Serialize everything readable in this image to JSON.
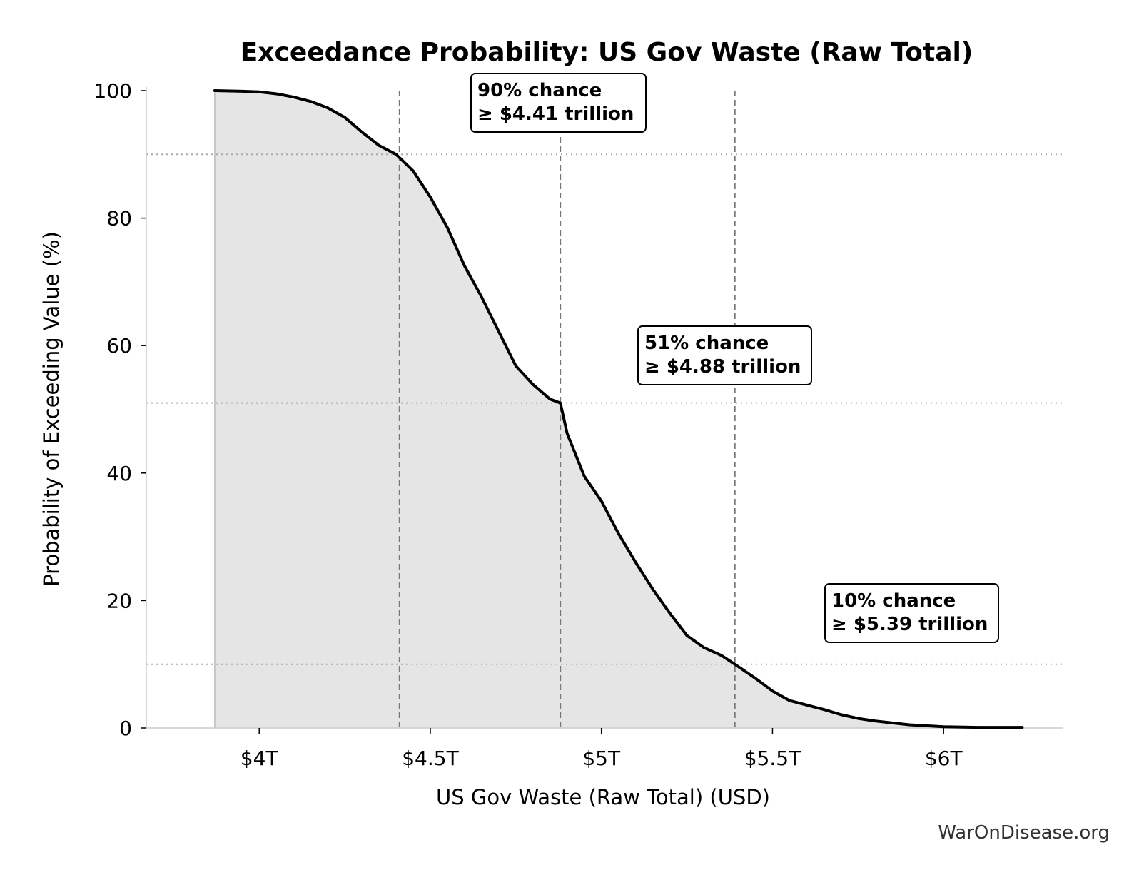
{
  "chart_data": {
    "type": "area",
    "title": "Exceedance Probability: US Gov Waste (Raw Total)",
    "xlabel": "US Gov Waste (Raw Total) (USD)",
    "ylabel": "Probability of Exceeding Value (%)",
    "x_unit": "trillion USD",
    "xlim": [
      3.67,
      6.35
    ],
    "ylim": [
      0,
      100
    ],
    "x_ticks": [
      {
        "value": 4.0,
        "label": "$4T"
      },
      {
        "value": 4.5,
        "label": "$4.5T"
      },
      {
        "value": 5.0,
        "label": "$5T"
      },
      {
        "value": 5.5,
        "label": "$5.5T"
      },
      {
        "value": 6.0,
        "label": "$6T"
      }
    ],
    "y_ticks": [
      {
        "value": 0,
        "label": "0"
      },
      {
        "value": 20,
        "label": "20"
      },
      {
        "value": 40,
        "label": "40"
      },
      {
        "value": 60,
        "label": "60"
      },
      {
        "value": 80,
        "label": "80"
      },
      {
        "value": 100,
        "label": "100"
      }
    ],
    "series": [
      {
        "x": [
          3.87,
          3.95,
          4.0,
          4.05,
          4.1,
          4.15,
          4.2,
          4.25,
          4.3,
          4.35,
          4.4,
          4.45,
          4.5,
          4.55,
          4.6,
          4.65,
          4.7,
          4.75,
          4.8,
          4.85,
          4.88,
          4.9,
          4.95,
          5.0,
          5.05,
          5.1,
          5.15,
          5.2,
          5.25,
          5.3,
          5.35,
          5.39,
          5.45,
          5.5,
          5.55,
          5.6,
          5.65,
          5.7,
          5.75,
          5.8,
          5.85,
          5.9,
          6.0,
          6.1,
          6.23
        ],
        "y": [
          100,
          99.9,
          99.8,
          99.5,
          99.0,
          98.3,
          97.3,
          95.8,
          93.5,
          91.4,
          90.0,
          87.4,
          83.3,
          78.5,
          72.5,
          67.6,
          62.2,
          56.8,
          53.9,
          51.6,
          51.0,
          46.2,
          39.5,
          35.6,
          30.5,
          26.0,
          21.8,
          18.0,
          14.5,
          12.6,
          11.4,
          10.0,
          7.8,
          5.8,
          4.3,
          3.6,
          2.9,
          2.1,
          1.5,
          1.1,
          0.8,
          0.5,
          0.2,
          0.1,
          0.1
        ]
      }
    ],
    "reference_lines": {
      "vertical_x": [
        4.41,
        4.88,
        5.39
      ],
      "horizontal_y": [
        90,
        51,
        10
      ]
    },
    "annotations": [
      {
        "line1": "90% chance",
        "line2": "≥ $4.41 trillion"
      },
      {
        "line1": "51% chance",
        "line2": "≥ $4.88 trillion"
      },
      {
        "line1": "10% chance",
        "line2": "≥ $5.39 trillion"
      }
    ],
    "grid": false,
    "colors": {
      "line": "#000000",
      "fill": "#e5e5e5",
      "reference": "#777777",
      "axis": "#cccccc"
    }
  },
  "watermark": "WarOnDisease.org"
}
